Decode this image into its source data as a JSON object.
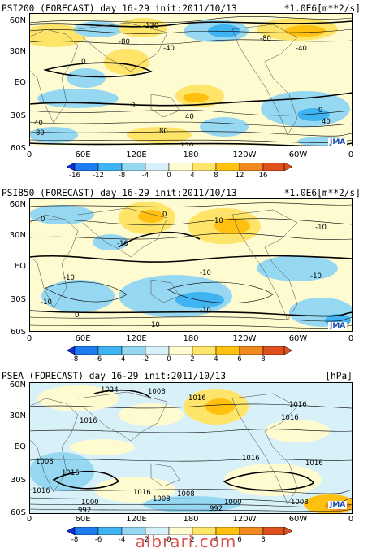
{
  "chart_data": [
    {
      "type": "heatmap",
      "title": "PSI200 (FORECAST) day 16-29 init:2011/10/13",
      "units": "*1.0E6[m**2/s]",
      "yticks": [
        "60N",
        "30N",
        "EQ",
        "30S",
        "60S"
      ],
      "xticks": [
        "0",
        "60E",
        "120E",
        "180",
        "120W",
        "60W",
        "0"
      ],
      "colorbar_levels": [
        "-16",
        "-12",
        "-8",
        "-4",
        "0",
        "4",
        "8",
        "12",
        "16"
      ],
      "contour_labels": [
        "-120",
        "-80",
        "-40",
        "0",
        "-80",
        "-40",
        "0",
        "40",
        "40",
        "80",
        "0",
        "40",
        "80",
        "120"
      ],
      "logo": "JMA",
      "colors": [
        "#0c2ee0",
        "#1c7cf0",
        "#40b4f2",
        "#96d8f2",
        "#d8f0f8",
        "#fffbd0",
        "#ffe46a",
        "#ffc010",
        "#f08a1e",
        "#e0501e"
      ]
    },
    {
      "type": "heatmap",
      "title": "PSI850 (FORECAST) day 16-29 init:2011/10/13",
      "units": "*1.0E6[m**2/s]",
      "yticks": [
        "60N",
        "30N",
        "EQ",
        "30S",
        "60S"
      ],
      "xticks": [
        "0",
        "60E",
        "120E",
        "180",
        "120W",
        "60W",
        "0"
      ],
      "colorbar_levels": [
        "-8",
        "-6",
        "-4",
        "-2",
        "0",
        "2",
        "4",
        "6",
        "8"
      ],
      "contour_labels": [
        "0",
        "10",
        "-10",
        "-10",
        "0",
        "-10",
        "-10",
        "-10",
        "-10",
        "0",
        "-10",
        "10"
      ],
      "logo": "JMA"
    },
    {
      "type": "heatmap",
      "title": "PSEA (FORECAST) day 16-29 init:2011/10/13",
      "units": "[hPa]",
      "yticks": [
        "60N",
        "30N",
        "EQ",
        "30S",
        "60S"
      ],
      "xticks": [
        "0",
        "60E",
        "120E",
        "180",
        "120W",
        "60W",
        "0"
      ],
      "colorbar_levels": [
        "-8",
        "-6",
        "-4",
        "-2",
        "0",
        "2",
        "4",
        "6",
        "8"
      ],
      "contour_labels": [
        "1024",
        "1008",
        "1016",
        "1016",
        "1016",
        "1016",
        "1008",
        "1016",
        "1016",
        "1016",
        "1016",
        "1016",
        "1008",
        "1008",
        "1000",
        "1000",
        "992",
        "992",
        "1008"
      ],
      "logo": "JMA"
    }
  ],
  "watermark": "albrari.com"
}
